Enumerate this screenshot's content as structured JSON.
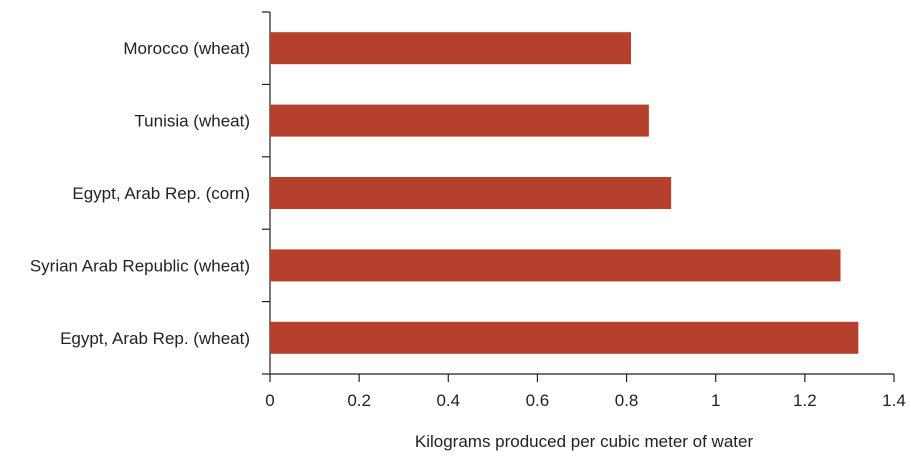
{
  "chart_data": {
    "type": "bar",
    "orientation": "horizontal",
    "categories": [
      "Morocco (wheat)",
      "Tunisia (wheat)",
      "Egypt, Arab Rep. (corn)",
      "Syrian Arab Republic (wheat)",
      "Egypt, Arab Rep. (wheat)"
    ],
    "values": [
      0.81,
      0.85,
      0.9,
      1.28,
      1.32
    ],
    "xlabel": "Kilograms produced per cubic meter of water",
    "ylabel": "",
    "title": "",
    "xlim": [
      0,
      1.4
    ],
    "xticks": [
      "0",
      "0.2",
      "0.4",
      "0.6",
      "0.8",
      "1",
      "1.2",
      "1.4"
    ],
    "grid": false,
    "legend": "none",
    "bar_color": "#b5402b",
    "axis_color": "#231f20"
  }
}
